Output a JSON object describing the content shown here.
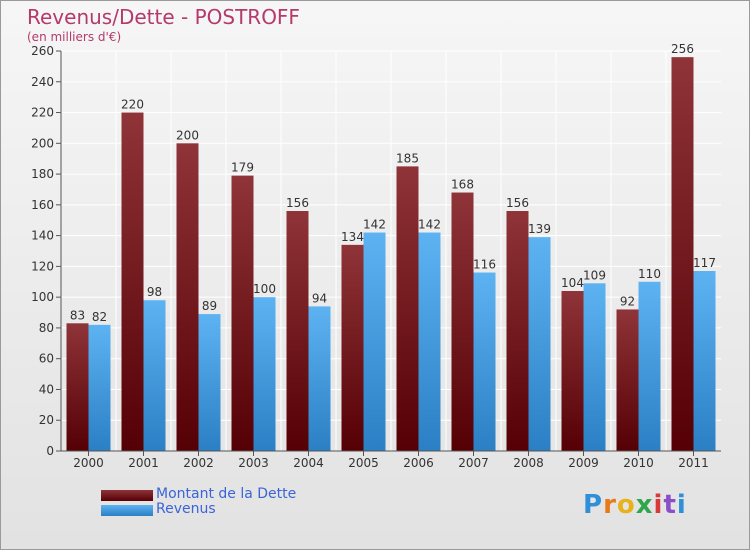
{
  "chart_data": {
    "type": "bar",
    "title": "Revenus/Dette - POSTROFF",
    "subtitle": "(en milliers d'€)",
    "categories": [
      "2000",
      "2001",
      "2002",
      "2003",
      "2004",
      "2005",
      "2006",
      "2007",
      "2008",
      "2009",
      "2010",
      "2011"
    ],
    "series": [
      {
        "name": "Montant de la Dette",
        "values": [
          83,
          220,
          200,
          179,
          156,
          134,
          185,
          168,
          156,
          104,
          92,
          256
        ],
        "color": "#6e0d12"
      },
      {
        "name": "Revenus",
        "values": [
          82,
          98,
          89,
          100,
          94,
          142,
          142,
          116,
          139,
          109,
          110,
          117
        ],
        "color": "#3d9be6"
      }
    ],
    "ylim": [
      0,
      260
    ],
    "yticks": [
      0,
      20,
      40,
      60,
      80,
      100,
      120,
      140,
      160,
      180,
      200,
      220,
      240,
      260
    ],
    "grid": true,
    "legend": "bottom-left"
  },
  "brand": {
    "logo_letters": [
      "P",
      "r",
      "o",
      "x",
      "i",
      "t",
      "i"
    ],
    "logo_colors": [
      "#2f8fd8",
      "#e87a1a",
      "#e8b21a",
      "#2fa64a",
      "#d83a3a",
      "#8a4fc8",
      "#2f8fd8"
    ]
  }
}
